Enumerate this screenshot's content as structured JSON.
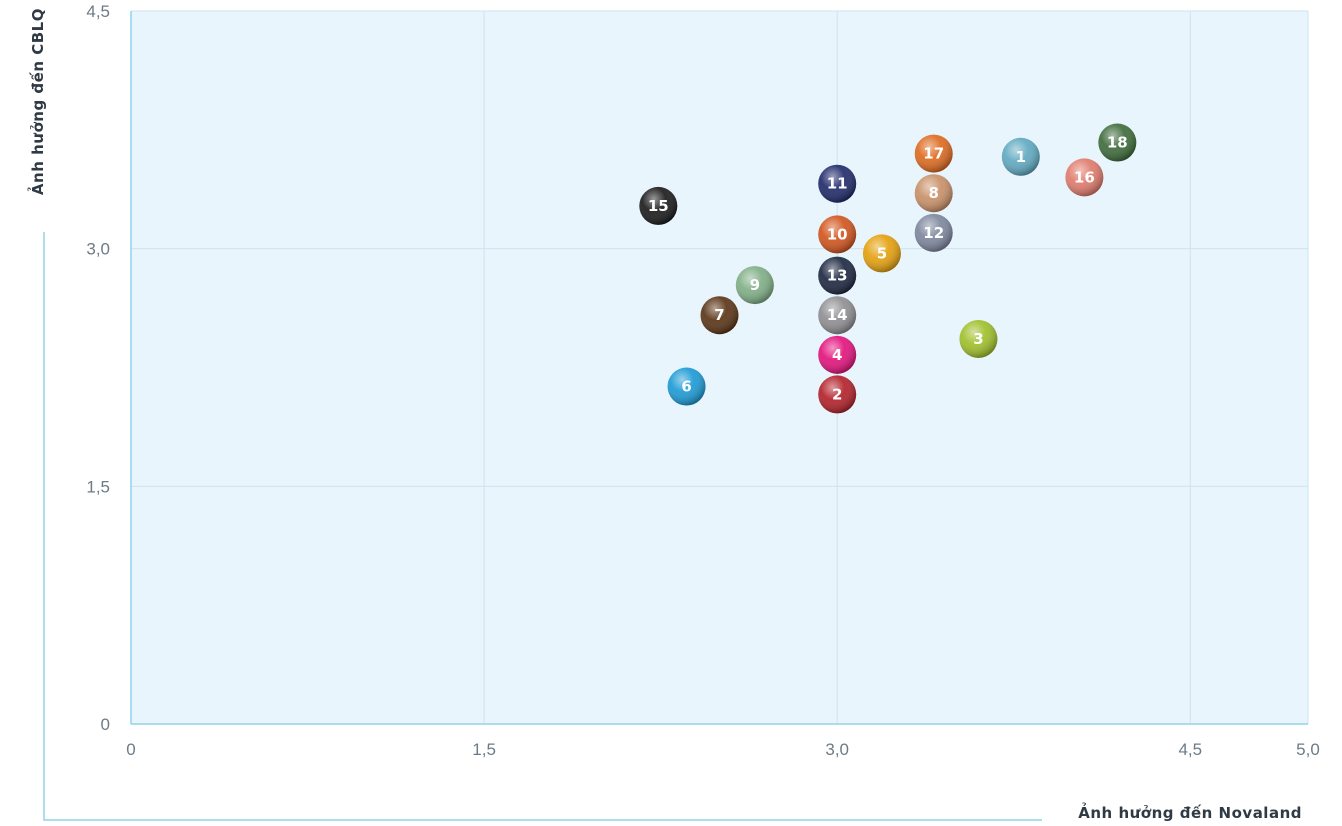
{
  "chart_data": {
    "type": "scatter",
    "xlabel": "Ảnh hưởng đến Novaland",
    "ylabel": "Ảnh hưởng đến CBLQ",
    "xlim": [
      0,
      5.0
    ],
    "ylim": [
      0,
      4.5
    ],
    "x_ticks": [
      {
        "value": 0,
        "label": "0"
      },
      {
        "value": 1.5,
        "label": "1,5"
      },
      {
        "value": 3.0,
        "label": "3,0"
      },
      {
        "value": 4.5,
        "label": "4,5"
      },
      {
        "value": 5.0,
        "label": "5,0"
      }
    ],
    "y_ticks": [
      {
        "value": 0,
        "label": "0"
      },
      {
        "value": 1.5,
        "label": "1,5"
      },
      {
        "value": 3.0,
        "label": "3,0"
      },
      {
        "value": 4.5,
        "label": "4,5"
      }
    ],
    "grid": true,
    "plot_background": "#e8f5fc",
    "grid_color": "#cfe3ef",
    "axis_color": "#8fd3ea",
    "points": [
      {
        "label": "1",
        "x": 3.78,
        "y": 3.58,
        "color": "#5fa9c0"
      },
      {
        "label": "2",
        "x": 3.0,
        "y": 2.08,
        "color": "#b3202a"
      },
      {
        "label": "3",
        "x": 3.6,
        "y": 2.43,
        "color": "#9fbf2a"
      },
      {
        "label": "4",
        "x": 3.0,
        "y": 2.33,
        "color": "#e3127d"
      },
      {
        "label": "5",
        "x": 3.19,
        "y": 2.97,
        "color": "#e4a00d"
      },
      {
        "label": "6",
        "x": 2.36,
        "y": 2.13,
        "color": "#1b9ad6"
      },
      {
        "label": "7",
        "x": 2.5,
        "y": 2.58,
        "color": "#5a3416"
      },
      {
        "label": "8",
        "x": 3.41,
        "y": 3.35,
        "color": "#c99068"
      },
      {
        "label": "9",
        "x": 2.65,
        "y": 2.77,
        "color": "#7fae85"
      },
      {
        "label": "10",
        "x": 3.0,
        "y": 3.09,
        "color": "#d1541c"
      },
      {
        "label": "11",
        "x": 3.0,
        "y": 3.41,
        "color": "#1f2a6a"
      },
      {
        "label": "12",
        "x": 3.41,
        "y": 3.1,
        "color": "#7d869d"
      },
      {
        "label": "13",
        "x": 3.0,
        "y": 2.83,
        "color": "#1c2740"
      },
      {
        "label": "14",
        "x": 3.0,
        "y": 2.58,
        "color": "#8f8f93"
      },
      {
        "label": "15",
        "x": 2.24,
        "y": 3.27,
        "color": "#1a1a1a"
      },
      {
        "label": "16",
        "x": 4.05,
        "y": 3.45,
        "color": "#e07a6c"
      },
      {
        "label": "17",
        "x": 3.41,
        "y": 3.6,
        "color": "#de6a1f"
      },
      {
        "label": "18",
        "x": 4.19,
        "y": 3.67,
        "color": "#3d6b3a"
      }
    ]
  }
}
